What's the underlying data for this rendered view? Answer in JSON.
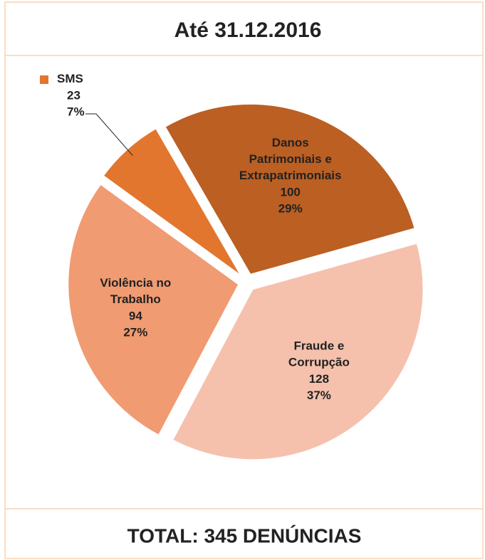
{
  "chart_data": {
    "type": "pie",
    "title": "Até 31.12.2016",
    "footer": "TOTAL: 345 DENÚNCIAS",
    "categories": [
      "Danos Patrimoniais e Extrapatrimoniais",
      "Fraude e Corrupção",
      "Violência no Trabalho",
      "SMS"
    ],
    "values": [
      100,
      128,
      94,
      23
    ],
    "percent_labels": [
      "29%",
      "37%",
      "27%",
      "7%"
    ],
    "colors": [
      "#bb5f23",
      "#f5c1ad",
      "#f09b72",
      "#e2762e"
    ]
  }
}
